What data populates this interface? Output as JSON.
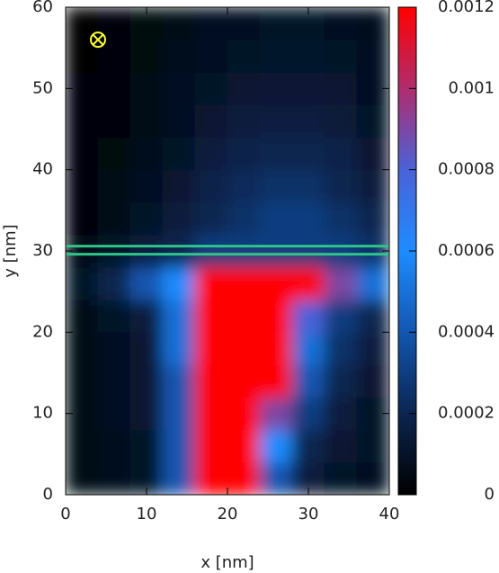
{
  "chart_data": {
    "type": "heatmap",
    "x_label": "x [nm]",
    "y_label": "y [nm]",
    "xlim": [
      0,
      40
    ],
    "ylim": [
      0,
      60
    ],
    "xticks": [
      0,
      10,
      20,
      30,
      40
    ],
    "yticks": [
      0,
      10,
      20,
      30,
      40,
      50,
      60
    ],
    "zlim": [
      0,
      0.0012
    ],
    "zticks": [
      0,
      0.0002,
      0.0004,
      0.0006,
      0.0008,
      0.001,
      0.0012
    ],
    "colormap": [
      "#000000",
      "#0b2550",
      "#1356b0",
      "#1e8cff",
      "#4a62d8",
      "#b02c6e",
      "#ff0000"
    ],
    "x": [
      2,
      6,
      10,
      14,
      18,
      22,
      26,
      30,
      34,
      38
    ],
    "y": [
      2,
      6,
      10,
      14,
      18,
      22,
      26,
      30,
      34,
      38,
      42,
      46,
      50,
      54,
      58
    ],
    "z": [
      [
        5e-05,
        7e-05,
        0.0001,
        0.0004,
        0.0012,
        0.0012,
        0.0004,
        0.00015,
        0.0001,
        8e-05
      ],
      [
        5e-05,
        7e-05,
        0.0001,
        0.0004,
        0.0012,
        0.0012,
        0.0006,
        0.0002,
        0.00012,
        0.0001
      ],
      [
        5e-05,
        8e-05,
        0.00012,
        0.0004,
        0.0012,
        0.0012,
        0.0009,
        0.0003,
        0.00015,
        0.0001
      ],
      [
        5e-05,
        8e-05,
        0.00012,
        0.0004,
        0.0012,
        0.0012,
        0.0012,
        0.0004,
        0.0002,
        0.00012
      ],
      [
        5e-05,
        8e-05,
        0.00012,
        0.0005,
        0.0012,
        0.0012,
        0.0012,
        0.0005,
        0.00025,
        0.00015
      ],
      [
        6e-05,
        0.0001,
        0.00015,
        0.0005,
        0.0012,
        0.0012,
        0.0012,
        0.0008,
        0.0003,
        0.0002
      ],
      [
        0.0001,
        0.0002,
        0.0004,
        0.0006,
        0.0012,
        0.0012,
        0.0012,
        0.0012,
        0.0009,
        0.0005
      ],
      [
        5e-05,
        0.0001,
        0.00015,
        0.0002,
        0.0003,
        0.0003,
        0.0003,
        0.0003,
        0.0003,
        0.00025
      ],
      [
        3e-05,
        6e-05,
        0.0001,
        0.00015,
        0.0002,
        0.00025,
        0.0003,
        0.0003,
        0.00025,
        0.0002
      ],
      [
        3e-05,
        5e-05,
        8e-05,
        0.00012,
        0.00018,
        0.00022,
        0.00025,
        0.00025,
        0.0002,
        0.00015
      ],
      [
        2e-05,
        4e-05,
        7e-05,
        0.0001,
        0.00015,
        0.00018,
        0.0002,
        0.0002,
        0.00018,
        0.00012
      ],
      [
        2e-05,
        3e-05,
        6e-05,
        9e-05,
        0.00012,
        0.00015,
        0.00016,
        0.00016,
        0.00014,
        0.0001
      ],
      [
        2e-05,
        3e-05,
        5e-05,
        8e-05,
        0.0001,
        0.00012,
        0.00013,
        0.00013,
        0.00012,
        9e-05
      ],
      [
        1e-05,
        3e-05,
        4e-05,
        7e-05,
        9e-05,
        0.0001,
        0.00011,
        0.00011,
        0.0001,
        8e-05
      ],
      [
        1e-05,
        2e-05,
        4e-05,
        6e-05,
        8e-05,
        9e-05,
        0.0001,
        0.0001,
        9e-05,
        7e-05
      ]
    ],
    "hlines": [
      29.6,
      30.6
    ],
    "hline_color": "#2ec48a",
    "marker": {
      "x": 4,
      "y": 56,
      "color": "#ffff33"
    }
  }
}
